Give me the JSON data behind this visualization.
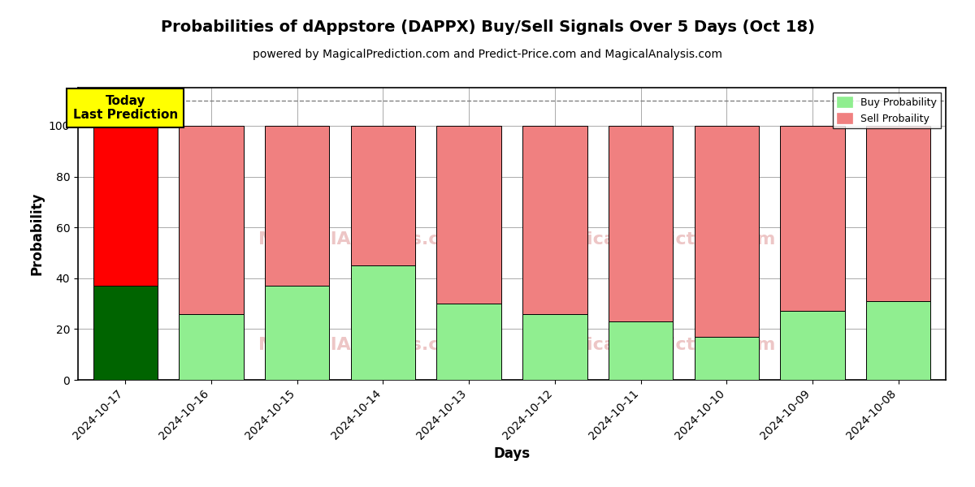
{
  "title": "Probabilities of dAppstore (DAPPX) Buy/Sell Signals Over 5 Days (Oct 18)",
  "subtitle": "powered by MagicalPrediction.com and Predict-Price.com and MagicalAnalysis.com",
  "xlabel": "Days",
  "ylabel": "Probability",
  "dates": [
    "2024-10-17",
    "2024-10-16",
    "2024-10-15",
    "2024-10-14",
    "2024-10-13",
    "2024-10-12",
    "2024-10-11",
    "2024-10-10",
    "2024-10-09",
    "2024-10-08"
  ],
  "buy_probs": [
    37,
    26,
    37,
    45,
    30,
    26,
    23,
    17,
    27,
    31
  ],
  "sell_probs": [
    63,
    74,
    63,
    55,
    70,
    74,
    77,
    83,
    73,
    69
  ],
  "today_buy_color": "#006400",
  "today_sell_color": "#FF0000",
  "buy_color": "#90EE90",
  "sell_color": "#F08080",
  "today_annotation": "Today\nLast Prediction",
  "ylim": [
    0,
    115
  ],
  "dashed_line_y": 110,
  "legend_buy_label": "Buy Probability",
  "legend_sell_label": "Sell Probaility",
  "background_color": "#ffffff",
  "grid_color": "#aaaaaa",
  "title_fontsize": 14,
  "subtitle_fontsize": 10,
  "axis_label_fontsize": 12,
  "bar_width": 0.75
}
